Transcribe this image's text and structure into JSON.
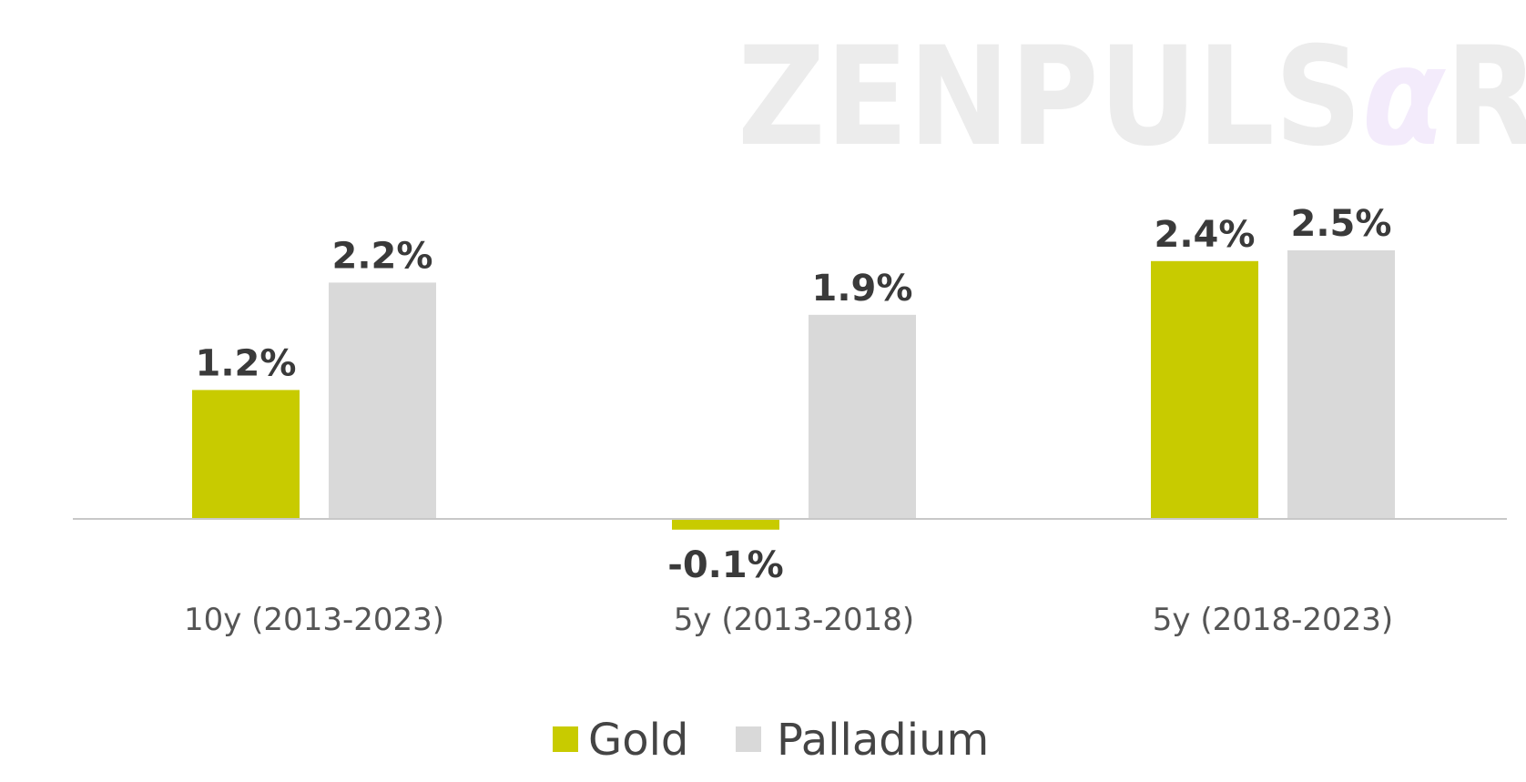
{
  "watermark": {
    "text": "ZENPULSAR",
    "prefix": "ZENPULS",
    "accent_letter": "α",
    "suffix": "R",
    "color": "#ececec",
    "accent_color": "#f3ebfb"
  },
  "chart_data": {
    "type": "bar",
    "categories": [
      "10y (2013-2023)",
      "5y (2013-2018)",
      "5y (2018-2023)"
    ],
    "series": [
      {
        "name": "Gold",
        "color": "#c8cb00",
        "values": [
          1.2,
          -0.1,
          2.4
        ],
        "labels": [
          "1.2%",
          "-0.1%",
          "2.4%"
        ]
      },
      {
        "name": "Palladium",
        "color": "#d9d9d9",
        "values": [
          2.2,
          1.9,
          2.5
        ],
        "labels": [
          "2.2%",
          "1.9%",
          "2.5%"
        ]
      }
    ],
    "unit": "%",
    "title": "",
    "xlabel": "",
    "ylabel": "",
    "ylim": [
      -0.1,
      2.5
    ],
    "grid": false,
    "legend_position": "bottom"
  }
}
